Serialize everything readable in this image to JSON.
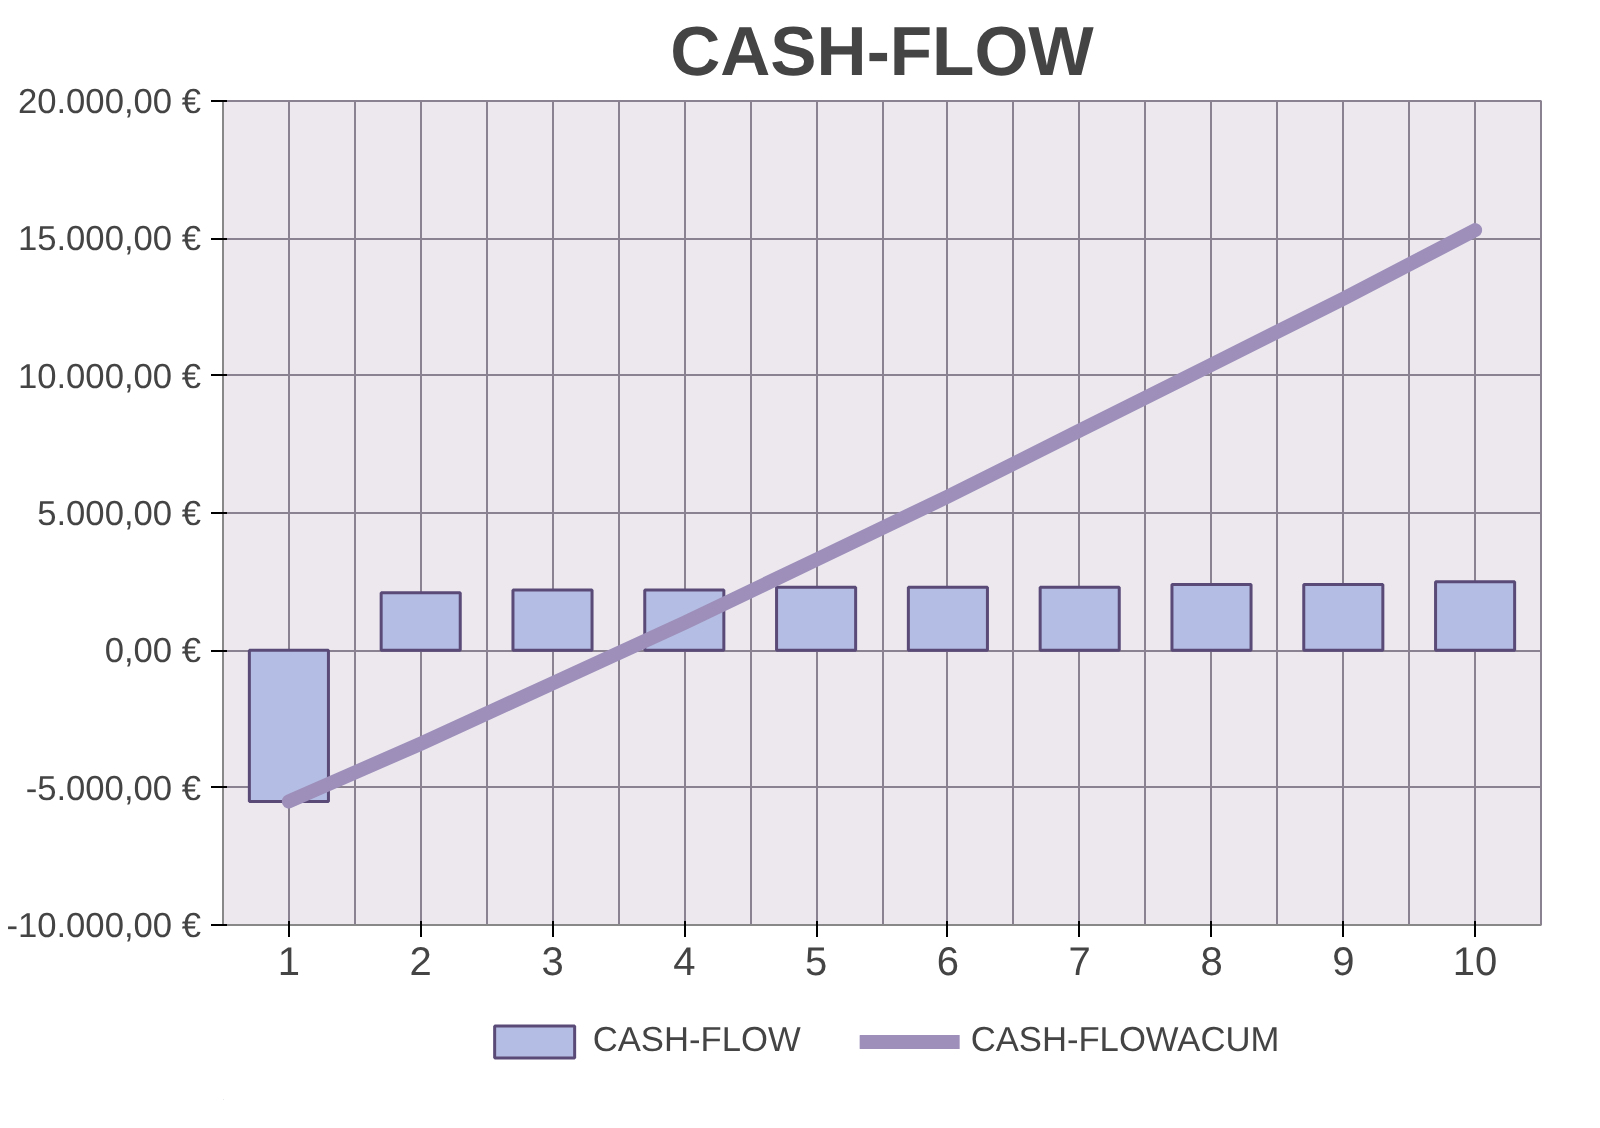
{
  "chart_data": {
    "type": "bar",
    "title": "CASH-FLOW",
    "categories": [
      "1",
      "2",
      "3",
      "4",
      "5",
      "6",
      "7",
      "8",
      "9",
      "10"
    ],
    "series": [
      {
        "name": "CASH-FLOW",
        "color": "#b4bde3",
        "values": [
          -5500,
          2100,
          2200,
          2200,
          2300,
          2300,
          2300,
          2400,
          2400,
          2500
        ]
      },
      {
        "name": "CASH-FLOWACUM",
        "type": "line",
        "color": "#9d8fba",
        "values": [
          -5500,
          -3400,
          -1200,
          1000,
          3300,
          5600,
          8000,
          10400,
          12800,
          15300
        ]
      }
    ],
    "ylim": [
      -10000,
      20000
    ],
    "yticks": [
      {
        "value": -10000,
        "label": "-10.000,00 €"
      },
      {
        "value": -5000,
        "label": "-5.000,00 €"
      },
      {
        "value": 0,
        "label": "0,00 €"
      },
      {
        "value": 5000,
        "label": "5.000,00 €"
      },
      {
        "value": 10000,
        "label": "10.000,00 €"
      },
      {
        "value": 15000,
        "label": "15.000,00 €"
      },
      {
        "value": 20000,
        "label": "20.000,00 €"
      }
    ],
    "grid": true,
    "legend": "bottom"
  }
}
